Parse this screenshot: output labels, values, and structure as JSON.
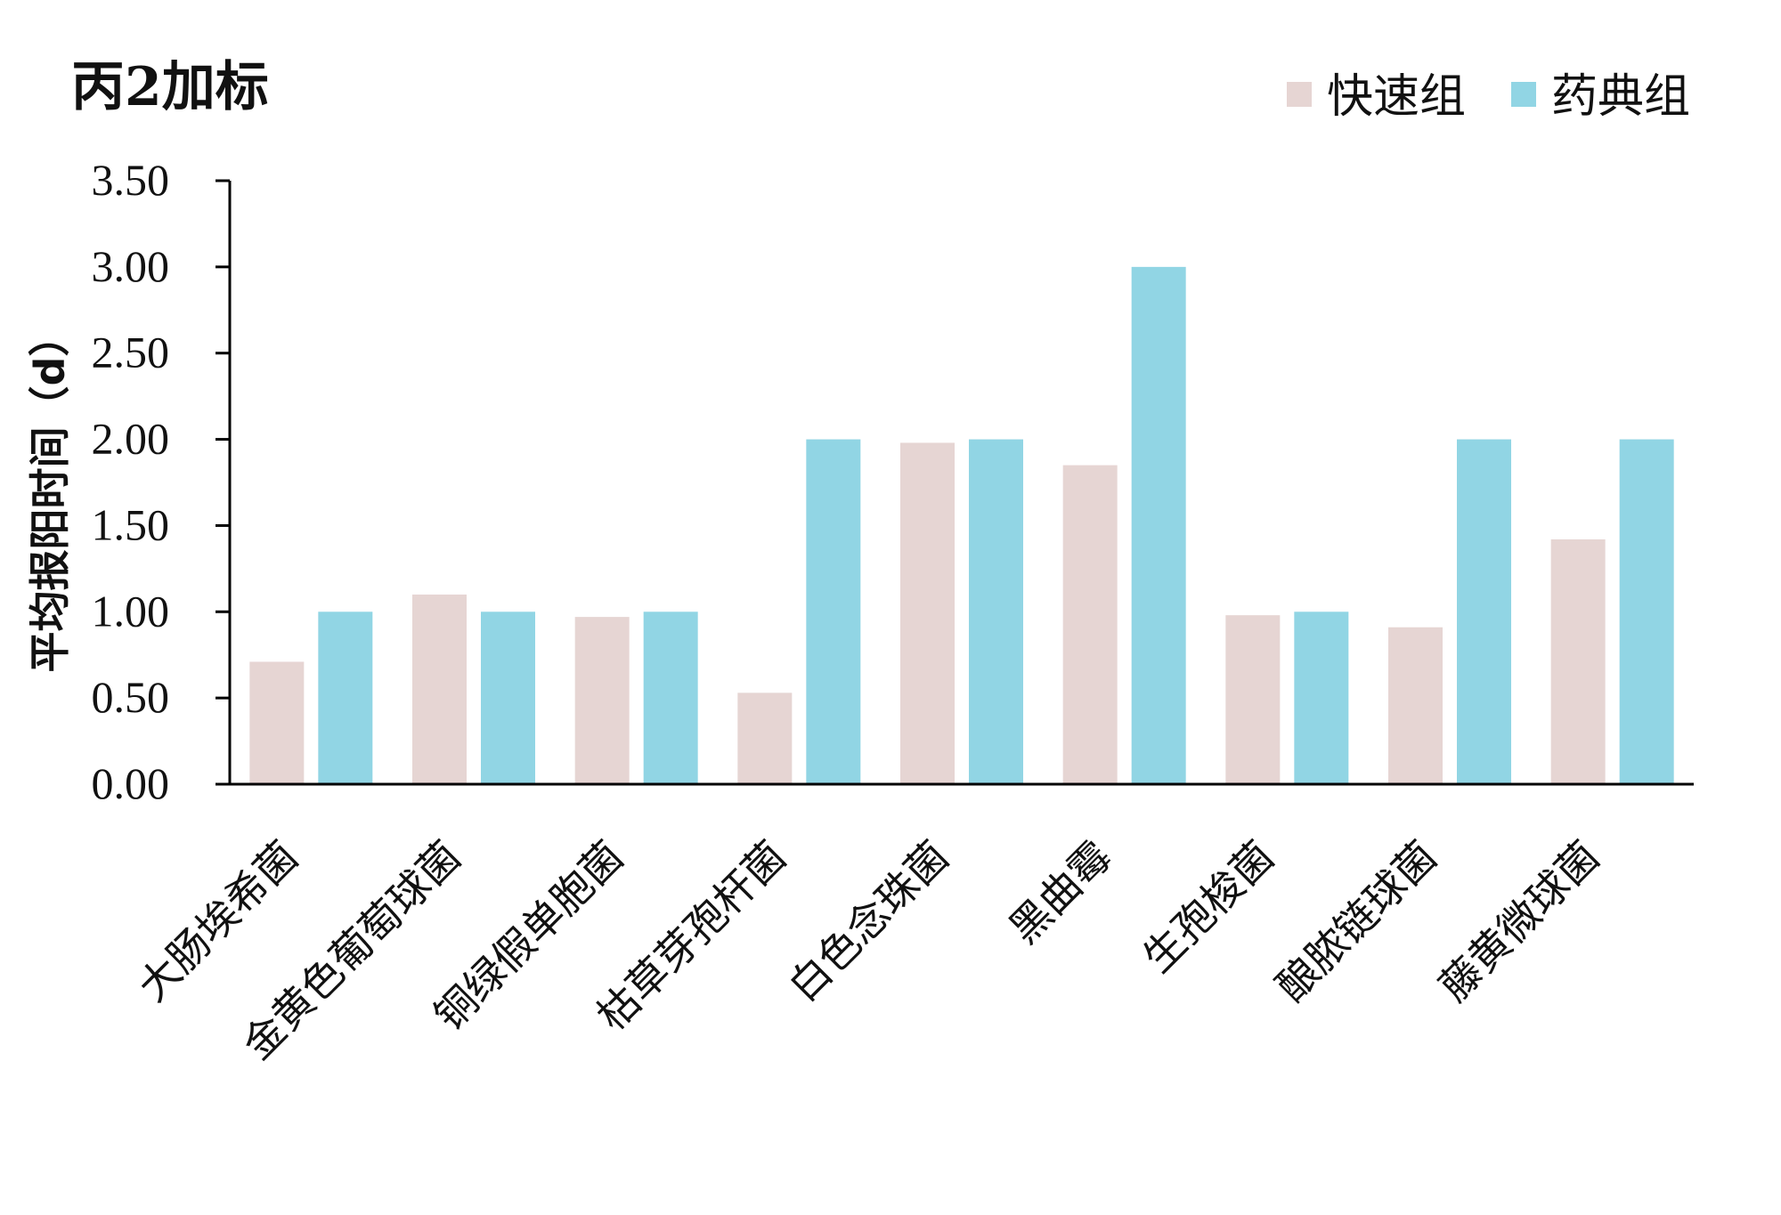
{
  "chart_data": {
    "type": "bar",
    "title": "丙2加标",
    "ylabel": "平均报阳时间（d）",
    "xlabel": "",
    "ylim": [
      0,
      3.5
    ],
    "yticks": [
      "0.00",
      "0.50",
      "1.00",
      "1.50",
      "2.00",
      "2.50",
      "3.00",
      "3.50"
    ],
    "grid": false,
    "legend_position": "top-right",
    "categories": [
      "大肠埃希菌",
      "金黄色葡萄球菌",
      "铜绿假单胞菌",
      "枯草芽孢杆菌",
      "白色念珠菌",
      "黑曲霉",
      "生孢梭菌",
      "酿脓链球菌",
      "藤黄微球菌"
    ],
    "series": [
      {
        "name": "快速组",
        "color": "#e6d5d3",
        "values": [
          0.71,
          1.1,
          0.97,
          0.53,
          1.98,
          1.85,
          0.98,
          0.91,
          1.42
        ]
      },
      {
        "name": "药典组",
        "color": "#91d5e4",
        "values": [
          1.0,
          1.0,
          1.0,
          2.0,
          2.0,
          3.0,
          1.0,
          2.0,
          2.0
        ]
      }
    ]
  }
}
